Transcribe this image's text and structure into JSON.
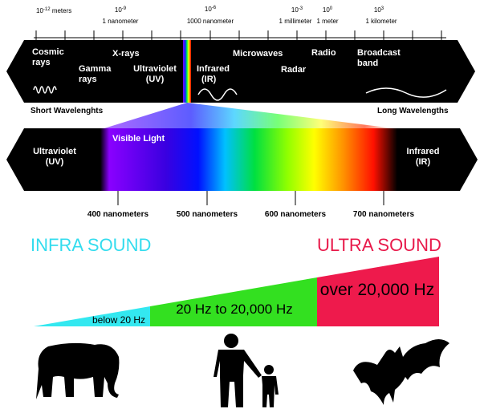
{
  "scale": [
    {
      "power": {
        "base": "10",
        "exp": "-12"
      },
      "unit": "meters"
    },
    {
      "power": {
        "base": "10",
        "exp": "-9"
      },
      "label": "1 nanometer"
    },
    {
      "power": {
        "base": "10",
        "exp": "-6"
      },
      "label": "1000 nanometer"
    },
    {
      "power": {
        "base": "10",
        "exp": "-3"
      },
      "label": "1 millimeter"
    },
    {
      "power": {
        "base": "10",
        "exp": "0"
      },
      "label": "1 meter"
    },
    {
      "power": {
        "base": "10",
        "exp": "3"
      },
      "label": "1 kilometer"
    }
  ],
  "spectrum": {
    "bands": [
      "Cosmic",
      "rays",
      "Gamma",
      "rays",
      "X-rays",
      "Ultraviolet",
      "(UV)",
      "Infrared",
      "(IR)",
      "Microwaves",
      "Radar",
      "Radio",
      "Broadcast",
      "band"
    ],
    "short": "Short Wavelenghts",
    "long": "Long Wavelengths"
  },
  "visible": {
    "uv": [
      "Ultraviolet",
      "(UV)"
    ],
    "title": "Visible Light",
    "ir": [
      "Infrared",
      "(IR)"
    ],
    "ticks": [
      "400 nanometers",
      "500 nanometers",
      "600 nanometers",
      "700 nanometers"
    ]
  },
  "sound": {
    "infra": "INFRA SOUND",
    "ultra": "ULTRA SOUND",
    "below": "below 20 Hz",
    "audible": "20 Hz  to  20,000 Hz",
    "over": "over  20,000 Hz"
  }
}
